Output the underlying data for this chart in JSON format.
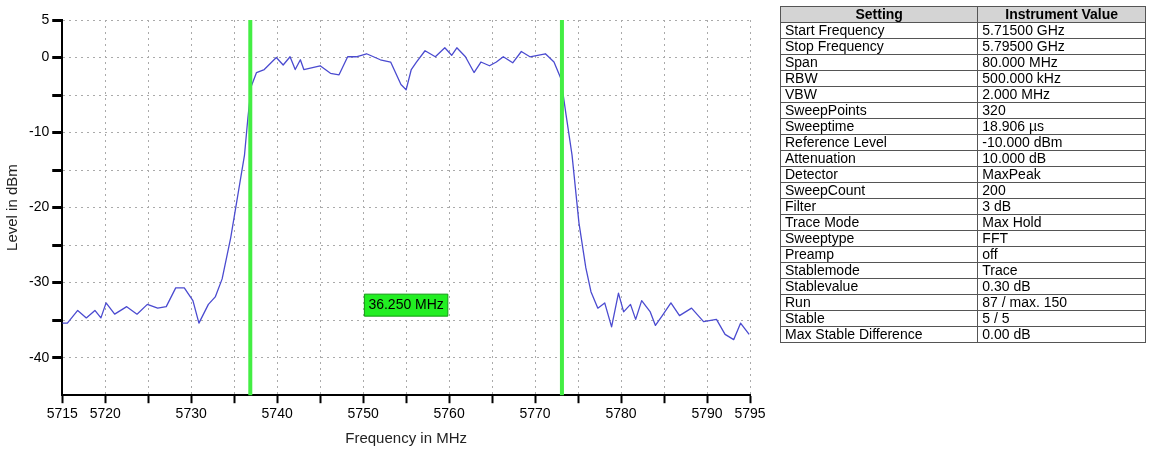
{
  "chart_data": [
    {
      "type": "line",
      "xlabel": "Frequency in MHz",
      "ylabel": "Level in dBm",
      "xlim": [
        5715,
        5795
      ],
      "ylim": [
        -45,
        5
      ],
      "xticks": [
        5715,
        5720,
        {
          "value": 5725,
          "label": null
        },
        5730,
        {
          "value": 5735,
          "label": null
        },
        5740,
        {
          "value": 5745,
          "label": null
        },
        5750,
        {
          "value": 5755,
          "label": null
        },
        5760,
        {
          "value": 5765,
          "label": null
        },
        5770,
        {
          "value": 5775,
          "label": null
        },
        5780,
        {
          "value": 5785,
          "label": null
        },
        5790,
        5795
      ],
      "yticks": [
        5,
        0,
        {
          "value": -5,
          "label": null
        },
        -10,
        {
          "value": -15,
          "label": null
        },
        -20,
        {
          "value": -25,
          "label": null
        },
        -30,
        {
          "value": -35,
          "label": null
        },
        -40
      ],
      "grid": true,
      "legend": false,
      "marker": "none",
      "line_style": "solid",
      "series": [
        {
          "color": "#4b4bd0",
          "x": [
            5715,
            5715.6,
            5716.8,
            5717.8,
            5718.8,
            5719.5,
            5720.1,
            5721.1,
            5722.5,
            5723.7,
            5724.9,
            5726.1,
            5727.1,
            5728.2,
            5729.2,
            5730.2,
            5730.9,
            5732,
            5732.8,
            5733.6,
            5734.6,
            5735.4,
            5736.2,
            5736.6,
            5737,
            5737.6,
            5738.5,
            5739.9,
            5740.7,
            5741.5,
            5742.1,
            5742.7,
            5743.1,
            5745,
            5746.2,
            5747.2,
            5748.2,
            5749.2,
            5750.4,
            5752,
            5753.2,
            5754.4,
            5755,
            5755.6,
            5756.2,
            5757.2,
            5758.4,
            5759.5,
            5760.3,
            5760.9,
            5761.9,
            5762.9,
            5763.7,
            5764.7,
            5765.5,
            5766.3,
            5767.4,
            5768.4,
            5769.4,
            5771.2,
            5772.2,
            5773,
            5773.6,
            5774.3,
            5775.1,
            5775.9,
            5776.5,
            5777.3,
            5778.1,
            5778.9,
            5779.7,
            5780.3,
            5781.1,
            5781.7,
            5782.4,
            5783.4,
            5784,
            5784.8,
            5785.8,
            5786.8,
            5788.2,
            5789.6,
            5791.1,
            5792.1,
            5793.1,
            5793.9,
            5794.9
          ],
          "values": [
            -35.4,
            -35.4,
            -33.7,
            -34.7,
            -33.7,
            -34.7,
            -32.7,
            -34.2,
            -33.2,
            -34.2,
            -32.9,
            -33.4,
            -33.2,
            -30.7,
            -30.7,
            -32.4,
            -35.4,
            -32.9,
            -31.9,
            -29.5,
            -24,
            -18.5,
            -13,
            -8,
            -3.8,
            -2,
            -1.6,
            0,
            -1,
            0.1,
            -1.6,
            -0.3,
            -1.6,
            -1.1,
            -2.1,
            -2.3,
            0.1,
            0.1,
            0.5,
            -0.3,
            -0.6,
            -3.6,
            -4.3,
            -1.6,
            -0.6,
            0.9,
            0.1,
            1.3,
            0.3,
            1.3,
            0.1,
            -2,
            -0.6,
            -1.1,
            -0.6,
            0.1,
            -0.7,
            0.8,
            0.1,
            0.5,
            -0.6,
            -2.8,
            -7.6,
            -13,
            -22,
            -28,
            -31.2,
            -33.4,
            -32.7,
            -35.9,
            -31.4,
            -33.9,
            -32.9,
            -34.9,
            -32.4,
            -33.9,
            -35.7,
            -34.4,
            -32.7,
            -34.4,
            -33.4,
            -35.2,
            -34.9,
            -36.9,
            -37.6,
            -35.4,
            -36.9
          ]
        }
      ],
      "ref_lines": [
        {
          "axis": "x",
          "value": 5736.875,
          "color": "#44ee44"
        },
        {
          "axis": "x",
          "value": 5773.125,
          "color": "#44ee44"
        }
      ],
      "annotations": [
        "36.250 MHz"
      ]
    },
    {
      "type": "other",
      "annotations": [
        "Setting",
        "Instrument Value",
        "Start Frequency",
        "5.71500 GHz",
        "Stop Frequency",
        "5.79500 GHz",
        "Span",
        "80.000 MHz",
        "RBW",
        "500.000 kHz",
        "VBW",
        "2.000 MHz",
        "SweepPoints",
        "320",
        "Sweeptime",
        "18.906 µs",
        "Reference Level",
        "-10.000 dBm",
        "Attenuation",
        "10.000 dB",
        "Detector",
        "MaxPeak",
        "SweepCount",
        "200",
        "Filter",
        "3 dB",
        "Trace Mode",
        "Max Hold",
        "Sweeptype",
        "FFT",
        "Preamp",
        "off",
        "Stablemode",
        "Trace",
        "Stablevalue",
        "0.30 dB",
        "Run",
        "87 / max. 150",
        "Stable",
        "5 / 5",
        "Max Stable Difference",
        "0.00 dB"
      ]
    }
  ]
}
